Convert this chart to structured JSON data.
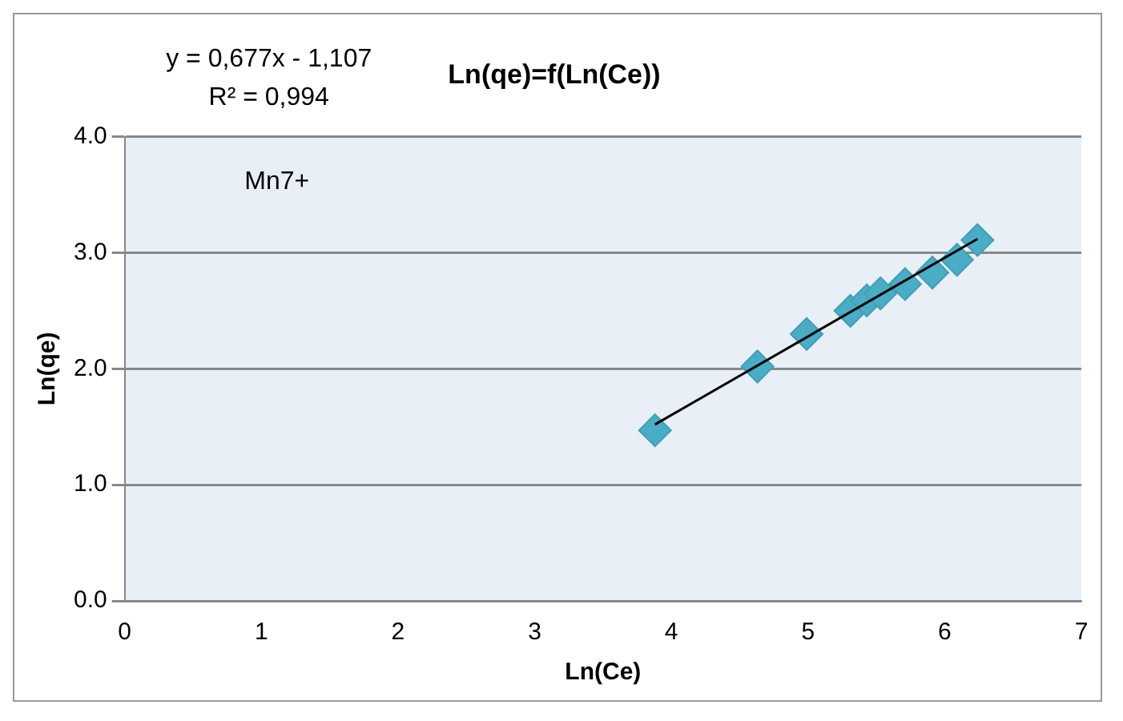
{
  "chart_data": {
    "type": "scatter",
    "title": "Ln(qe)=f(Ln(Ce))",
    "xlabel": "Ln(Ce)",
    "ylabel": "Ln(qe)",
    "annotations": [
      "y = 0,677x - 1,107",
      "R² = 0,994",
      "Mn7+"
    ],
    "series": [
      {
        "color": "#4bacc6",
        "marker": "diamond",
        "x": [
          3.88,
          4.63,
          4.99,
          5.31,
          5.43,
          5.53,
          5.71,
          5.91,
          6.09,
          6.24
        ],
        "values": [
          1.47,
          2.02,
          2.3,
          2.5,
          2.59,
          2.65,
          2.73,
          2.83,
          2.94,
          3.11
        ]
      },
      {
        "type": "line",
        "color": "#000000",
        "marker": "none",
        "line_style": "solid",
        "x": [
          3.88,
          6.24
        ],
        "values": [
          1.52,
          3.12
        ]
      }
    ],
    "xlim": [
      0,
      7
    ],
    "xticks": [
      0,
      1,
      2,
      3,
      4,
      5,
      6,
      7
    ],
    "ylim": [
      0,
      4
    ],
    "yticks": [
      {
        "value": 0,
        "label": "0.0"
      },
      {
        "value": 1,
        "label": "1.0"
      },
      {
        "value": 2,
        "label": "2.0"
      },
      {
        "value": 3,
        "label": "3.0"
      },
      {
        "value": 4,
        "label": "4.0"
      }
    ],
    "grid": "y",
    "legend": false
  }
}
